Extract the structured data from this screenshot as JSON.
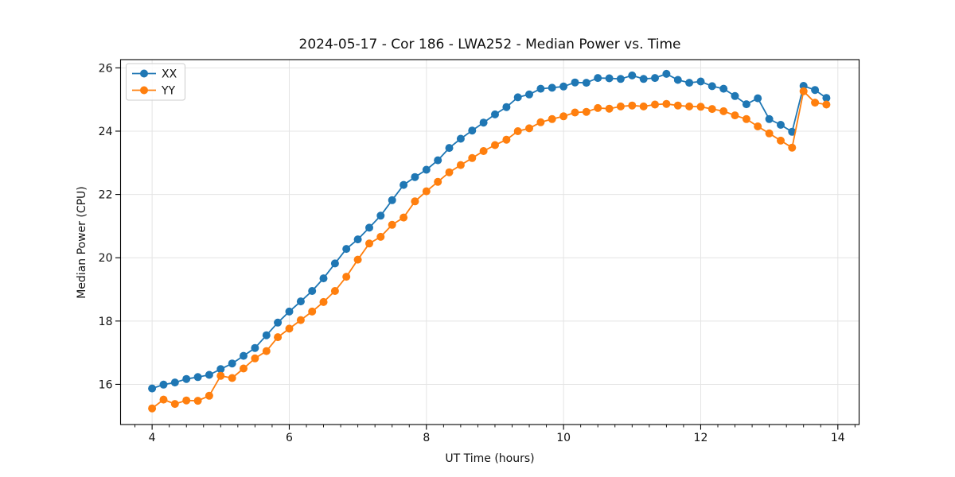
{
  "chart_data": {
    "type": "line",
    "title": "2024-05-17 - Cor 186 - LWA252 - Median Power vs. Time",
    "xlabel": "UT Time (hours)",
    "ylabel": "Median Power (CPU)",
    "xlim": [
      3.54,
      14.31
    ],
    "ylim": [
      14.73,
      26.26
    ],
    "xticks": [
      4,
      6,
      8,
      10,
      12,
      14
    ],
    "yticks": [
      16,
      18,
      20,
      22,
      24,
      26
    ],
    "x_minor_tick_step": 0.25,
    "grid": true,
    "grid_color": "#e4e4e4",
    "legend_position": "upper left",
    "legend_labels": [
      "XX",
      "YY"
    ],
    "x": [
      4.0,
      4.167,
      4.333,
      4.5,
      4.667,
      4.833,
      5.0,
      5.167,
      5.333,
      5.5,
      5.667,
      5.833,
      6.0,
      6.167,
      6.333,
      6.5,
      6.667,
      6.833,
      7.0,
      7.167,
      7.333,
      7.5,
      7.667,
      7.833,
      8.0,
      8.167,
      8.333,
      8.5,
      8.667,
      8.833,
      9.0,
      9.167,
      9.333,
      9.5,
      9.667,
      9.833,
      10.0,
      10.167,
      10.333,
      10.5,
      10.667,
      10.833,
      11.0,
      11.167,
      11.333,
      11.5,
      11.667,
      11.833,
      12.0,
      12.167,
      12.333,
      12.5,
      12.667,
      12.833,
      13.0,
      13.167,
      13.333,
      13.5,
      13.667,
      13.833
    ],
    "series": [
      {
        "name": "XX",
        "color": "#1f77b4",
        "values": [
          15.87,
          15.99,
          16.06,
          16.17,
          16.23,
          16.3,
          16.48,
          16.66,
          16.9,
          17.15,
          17.55,
          17.95,
          18.3,
          18.62,
          18.95,
          19.35,
          19.82,
          20.28,
          20.58,
          20.95,
          21.33,
          21.82,
          22.3,
          22.55,
          22.78,
          23.08,
          23.47,
          23.76,
          24.02,
          24.27,
          24.53,
          24.76,
          25.07,
          25.16,
          25.34,
          25.37,
          25.41,
          25.54,
          25.53,
          25.68,
          25.67,
          25.65,
          25.76,
          25.65,
          25.68,
          25.81,
          25.62,
          25.53,
          25.57,
          25.42,
          25.34,
          25.11,
          24.85,
          25.04,
          24.38,
          24.2,
          23.98,
          25.43,
          25.3,
          25.05
        ]
      },
      {
        "name": "YY",
        "color": "#ff7f0e",
        "values": [
          15.24,
          15.52,
          15.38,
          15.49,
          15.48,
          15.64,
          16.27,
          16.2,
          16.5,
          16.82,
          17.05,
          17.49,
          17.76,
          18.03,
          18.3,
          18.6,
          18.95,
          19.4,
          19.94,
          20.45,
          20.66,
          21.04,
          21.27,
          21.78,
          22.1,
          22.4,
          22.7,
          22.93,
          23.15,
          23.37,
          23.56,
          23.73,
          24.0,
          24.09,
          24.28,
          24.38,
          24.47,
          24.59,
          24.61,
          24.73,
          24.71,
          24.78,
          24.81,
          24.78,
          24.84,
          24.86,
          24.81,
          24.78,
          24.77,
          24.7,
          24.63,
          24.5,
          24.38,
          24.15,
          23.93,
          23.7,
          23.48,
          25.26,
          24.9,
          24.84
        ]
      }
    ]
  }
}
